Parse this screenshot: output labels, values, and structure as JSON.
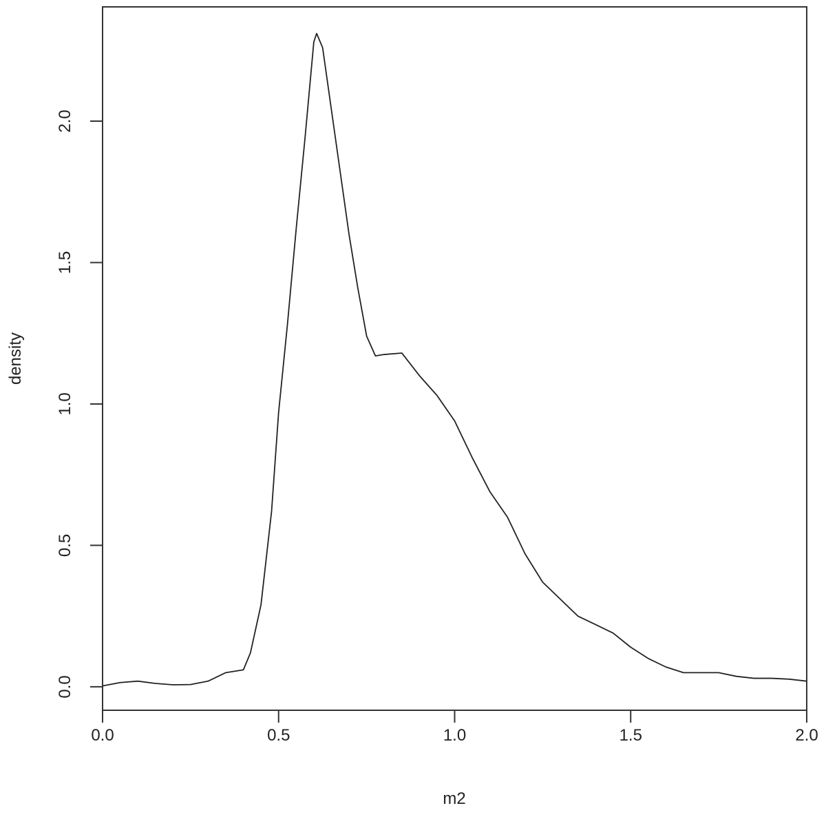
{
  "chart_data": {
    "type": "line",
    "x_label": "m2",
    "y_label": "density",
    "x": [
      0,
      0.05,
      0.1,
      0.15,
      0.2,
      0.25,
      0.3,
      0.35,
      0.4,
      0.42,
      0.45,
      0.48,
      0.5,
      0.525,
      0.55,
      0.575,
      0.6,
      0.608,
      0.625,
      0.65,
      0.675,
      0.7,
      0.725,
      0.75,
      0.775,
      0.8,
      0.85,
      0.9,
      0.95,
      1.0,
      1.05,
      1.1,
      1.15,
      1.2,
      1.25,
      1.3,
      1.35,
      1.4,
      1.45,
      1.5,
      1.55,
      1.6,
      1.65,
      1.7,
      1.75,
      1.8,
      1.85,
      1.9,
      1.95,
      2.0
    ],
    "series": [
      {
        "color": "#222222",
        "values": [
          0.003,
          0.015,
          0.02,
          0.012,
          0.007,
          0.008,
          0.02,
          0.05,
          0.06,
          0.12,
          0.29,
          0.62,
          0.97,
          1.28,
          1.62,
          1.94,
          2.28,
          2.31,
          2.26,
          2.04,
          1.82,
          1.6,
          1.41,
          1.24,
          1.17,
          1.175,
          1.18,
          1.1,
          1.03,
          0.94,
          0.81,
          0.69,
          0.6,
          0.47,
          0.37,
          0.31,
          0.25,
          0.22,
          0.19,
          0.14,
          0.1,
          0.07,
          0.05,
          0.05,
          0.05,
          0.037,
          0.03,
          0.03,
          0.027,
          0.02
        ]
      }
    ],
    "xlim": [
      0,
      2
    ],
    "ylim": [
      -0.083,
      2.404
    ],
    "xticks": [
      {
        "value": 0,
        "label": "0.0"
      },
      0.5,
      {
        "value": 1,
        "label": "1.0"
      },
      1.5,
      {
        "value": 2,
        "label": "2.0"
      }
    ],
    "yticks": [
      {
        "value": 0,
        "label": "0.0"
      },
      0.5,
      {
        "value": 1,
        "label": "1.0"
      },
      1.5,
      {
        "value": 2,
        "label": "2.0"
      }
    ],
    "grid": false
  }
}
